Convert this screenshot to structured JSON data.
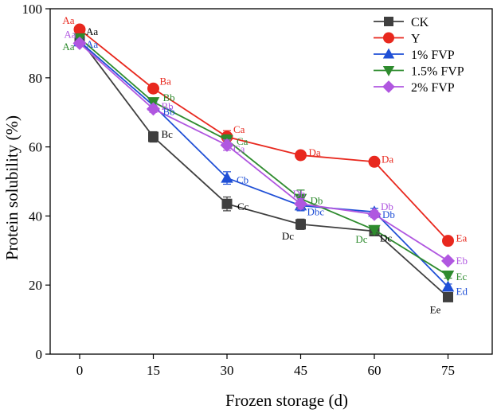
{
  "chart_data": {
    "type": "line",
    "title": "",
    "xlabel": "Frozen storage (d)",
    "ylabel": "Protein solubility (%)",
    "x": [
      0,
      15,
      30,
      45,
      60,
      75
    ],
    "xlim": [
      -6,
      84
    ],
    "ylim": [
      0,
      100
    ],
    "yticks": [
      0,
      20,
      40,
      60,
      80,
      100
    ],
    "legend_position": "top-right",
    "series": [
      {
        "name": "CK",
        "color": "#3f3f3f",
        "marker": "square",
        "values": [
          91.2,
          62.9,
          43.5,
          37.6,
          35.6,
          16.5
        ],
        "errors": [
          0.8,
          1.5,
          2.0,
          1.5,
          1.0,
          0.8
        ],
        "labels": [
          "Aa",
          "Bc",
          "Cc",
          "Dc",
          "Dc",
          "Ee"
        ]
      },
      {
        "name": "Y",
        "color": "#e8281e",
        "marker": "circle",
        "values": [
          94.0,
          76.9,
          62.9,
          57.6,
          55.7,
          32.8
        ],
        "errors": [
          0.6,
          0.8,
          1.8,
          0.8,
          0.6,
          0.6
        ],
        "labels": [
          "Aa",
          "Ba",
          "Ca",
          "Da",
          "Da",
          "Ea"
        ]
      },
      {
        "name": "1% FVP",
        "color": "#1f4fd6",
        "marker": "triangle-up",
        "values": [
          90.5,
          72.0,
          51.0,
          43.0,
          41.2,
          19.5
        ],
        "errors": [
          0.8,
          1.0,
          1.8,
          1.5,
          1.0,
          0.8
        ],
        "labels": [
          "Aa",
          "Bb",
          "Cb",
          "Dbc",
          "Db",
          "Ed"
        ]
      },
      {
        "name": "1.5% FVP",
        "color": "#2e8b2e",
        "marker": "triangle-down",
        "values": [
          91.5,
          73.0,
          62.0,
          45.0,
          36.0,
          22.8
        ],
        "errors": [
          0.8,
          1.0,
          1.5,
          2.5,
          1.2,
          0.8
        ],
        "labels": [
          "Aa",
          "Bb",
          "Ca",
          "Db",
          "Dc",
          "Ec"
        ]
      },
      {
        "name": "2% FVP",
        "color": "#b057e0",
        "marker": "diamond",
        "values": [
          90.0,
          71.0,
          60.5,
          43.5,
          40.5,
          27.0
        ],
        "errors": [
          0.8,
          1.0,
          1.5,
          1.5,
          1.0,
          0.8
        ],
        "labels": [
          "Aa",
          "Bb",
          "Ca",
          "Db",
          "Db",
          "Eb"
        ]
      }
    ]
  }
}
